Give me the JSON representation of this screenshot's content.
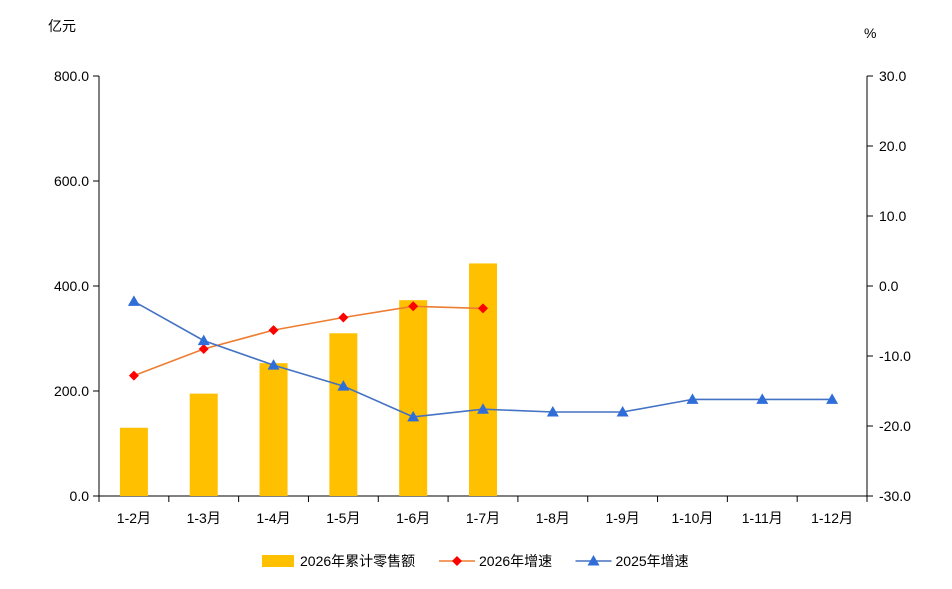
{
  "chart_data": {
    "type": "bar",
    "left_unit": "亿元",
    "right_unit": "%",
    "categories": [
      "1-2月",
      "1-3月",
      "1-4月",
      "1-5月",
      "1-6月",
      "1-7月",
      "1-8月",
      "1-9月",
      "1-10月",
      "1-11月",
      "1-12月"
    ],
    "left_axis": {
      "min": 0,
      "max": 800,
      "ticks": [
        "0.0",
        "200.0",
        "400.0",
        "600.0",
        "800.0"
      ]
    },
    "right_axis": {
      "min": -30,
      "max": 30,
      "ticks": [
        "-30.0",
        "-20.0",
        "-10.0",
        "0.0",
        "10.0",
        "20.0",
        "30.0"
      ]
    },
    "series": [
      {
        "name": "2026年累计零售额",
        "type": "bar",
        "axis": "left",
        "color": "#FFC000",
        "values": [
          130,
          195,
          253,
          310,
          373,
          443,
          null,
          null,
          null,
          null,
          null
        ]
      },
      {
        "name": "2026年增速",
        "type": "line",
        "axis": "right",
        "color": "#ED7D31",
        "marker": "diamond",
        "marker_color": "#FF0000",
        "values": [
          -12.8,
          -9.0,
          -6.3,
          -4.5,
          -2.9,
          -3.2,
          null,
          null,
          null,
          null,
          null
        ]
      },
      {
        "name": "2025年增速",
        "type": "line",
        "axis": "right",
        "color": "#4472C4",
        "marker": "triangle",
        "marker_color": "#2F6ED8",
        "values": [
          -2.2,
          -7.8,
          -11.3,
          -14.3,
          -18.7,
          -17.6,
          -18.0,
          -18.0,
          -16.2,
          -16.2,
          -16.2
        ]
      }
    ],
    "grid": false,
    "legend": "bottom-center"
  }
}
